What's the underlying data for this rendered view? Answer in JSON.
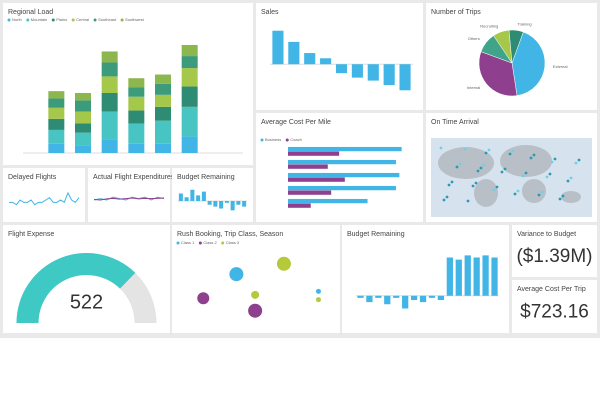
{
  "chart_data": [
    {
      "type": "stacked_bar",
      "title": "Regional Load",
      "categories": [
        null,
        null,
        null,
        null,
        null,
        null
      ],
      "ylim": [
        0,
        130
      ],
      "series": [
        {
          "name": "North",
          "color": "#41b6e6",
          "values": [
            10,
            8,
            15,
            10,
            10,
            18
          ]
        },
        {
          "name": "Mountain",
          "color": "#48c4c2",
          "values": [
            15,
            14,
            30,
            22,
            25,
            32
          ]
        },
        {
          "name": "Plains",
          "color": "#2e8c74",
          "values": [
            12,
            10,
            20,
            14,
            15,
            22
          ]
        },
        {
          "name": "Central",
          "color": "#a5c74a",
          "values": [
            12,
            13,
            18,
            15,
            13,
            20
          ]
        },
        {
          "name": "Southeast",
          "color": "#3b9b7a",
          "values": [
            10,
            12,
            15,
            10,
            12,
            13
          ]
        },
        {
          "name": "Southwest",
          "color": "#8cb64e",
          "values": [
            8,
            8,
            12,
            10,
            10,
            12
          ]
        }
      ]
    },
    {
      "type": "bar",
      "title": "Sales",
      "categories": [
        null,
        null,
        null,
        null,
        null,
        null,
        null,
        null,
        null
      ],
      "values": [
        45,
        30,
        15,
        8,
        -12,
        -18,
        -22,
        -28,
        -35
      ],
      "color": "#41b6e6",
      "ylim": [
        -40,
        50
      ]
    },
    {
      "type": "pie",
      "title": "Number of Trips",
      "categories": [
        "External",
        "Internal",
        "Others",
        "Recruiting",
        "Training"
      ],
      "values": [
        42,
        33,
        10,
        8,
        7
      ],
      "colors": [
        "#41b6e6",
        "#8e3f8e",
        "#3fa48a",
        "#a5c74a",
        "#2f8c74"
      ]
    },
    {
      "type": "hbar",
      "title": "Average Cost Per Mile",
      "categories": [
        null,
        null,
        null,
        null,
        null
      ],
      "xlim": [
        0,
        110
      ],
      "series": [
        {
          "name": "Business",
          "color": "#41b6e6",
          "values": [
            100,
            95,
            98,
            95,
            70
          ]
        },
        {
          "name": "Coach",
          "color": "#8e3f8e",
          "values": [
            45,
            35,
            50,
            38,
            20
          ]
        }
      ]
    },
    {
      "type": "map",
      "title": "On Time Arrival"
    },
    {
      "type": "line",
      "title": "Delayed Flights",
      "ylim": [
        0,
        12
      ],
      "series": [
        {
          "color": "#41b6e6",
          "values": [
            5,
            5,
            4,
            6,
            5,
            5,
            6,
            4,
            5,
            5,
            6,
            7,
            5,
            5,
            6,
            5,
            9,
            6,
            5,
            7
          ]
        }
      ]
    },
    {
      "type": "line",
      "title": "Actual Flight Expenditures, Bu...",
      "ylim": [
        0,
        10
      ],
      "series": [
        {
          "color": "#41b6e6",
          "values": [
            5,
            5.5,
            5,
            6,
            5.5,
            5,
            6,
            5.5,
            6,
            5,
            6,
            5.5
          ]
        },
        {
          "color": "#8e3f8e",
          "values": [
            5.2,
            5,
            5.4,
            5.6,
            5.3,
            5.5,
            5.7,
            5.4,
            5.6,
            5.5,
            5.6,
            5.7
          ]
        }
      ]
    },
    {
      "type": "bar",
      "title": "Budget Remaining",
      "categories": [
        null,
        null,
        null,
        null,
        null,
        null,
        null,
        null,
        null,
        null,
        null,
        null
      ],
      "values": [
        4,
        2,
        6,
        3,
        5,
        -2,
        -3,
        -4,
        -1,
        -5,
        -2,
        -3
      ],
      "color": "#41b6e6",
      "ylim": [
        -8,
        8
      ]
    },
    {
      "type": "gauge",
      "title": "Flight Expense",
      "value": 522,
      "ylim": [
        0,
        700
      ],
      "color": "#3ec9c4"
    },
    {
      "type": "scatter",
      "title": "Rush Booking, Trip Class, Season",
      "xlim": [
        0,
        100
      ],
      "ylim": [
        0,
        100
      ],
      "series": [
        {
          "name": "Class 1",
          "color": "#41b6e6",
          "x": [
            35,
            92
          ],
          "values": [
            65,
            40
          ],
          "sizes": [
            14,
            5
          ]
        },
        {
          "name": "Class 2",
          "color": "#8e3f8e",
          "x": [
            12,
            48
          ],
          "values": [
            30,
            12
          ],
          "sizes": [
            12,
            14
          ]
        },
        {
          "name": "Class 3",
          "color": "#b5c93a",
          "x": [
            68,
            48,
            92
          ],
          "values": [
            80,
            35,
            28
          ],
          "sizes": [
            14,
            8,
            5
          ]
        }
      ]
    },
    {
      "type": "bar",
      "title": "Budget Remaining",
      "categories": [
        null,
        null,
        null,
        null,
        null,
        null,
        null,
        null,
        null,
        null,
        null,
        null,
        null,
        null,
        null,
        null
      ],
      "values": [
        -1,
        -3,
        -1,
        -4,
        -1,
        -6,
        -2,
        -3,
        -1,
        -2,
        18,
        17,
        19,
        18,
        19,
        18
      ],
      "color": "#41b6e6",
      "ylim": [
        -10,
        22
      ]
    },
    {
      "type": "kpi",
      "title": "Variance to Budget",
      "values": [
        -1390000
      ],
      "value_labels": [
        "($1.39M)"
      ]
    },
    {
      "type": "kpi",
      "title": "Average Cost Per Trip",
      "values": [
        723.16
      ],
      "value_labels": [
        "$723.16"
      ]
    }
  ]
}
